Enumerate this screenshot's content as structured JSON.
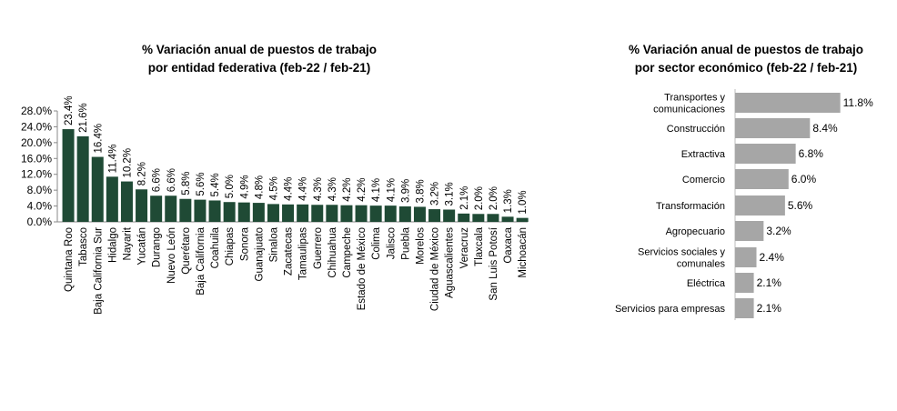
{
  "chart_data": [
    {
      "type": "bar",
      "title_line1": "% Variación anual de puestos de trabajo",
      "title_line2": "por entidad federativa (feb-22 / feb-21)",
      "categories": [
        "Quintana Roo",
        "Tabasco",
        "Baja California Sur",
        "Hidalgo",
        "Nayarit",
        "Yucatán",
        "Durango",
        "Nuevo León",
        "Querétaro",
        "Baja California",
        "Coahuila",
        "Chiapas",
        "Sonora",
        "Guanajuato",
        "Sinaloa",
        "Zacatecas",
        "Tamaulipas",
        "Guerrero",
        "Chihuahua",
        "Campeche",
        "Estado de México",
        "Colima",
        "Jalisco",
        "Puebla",
        "Morelos",
        "Ciudad de México",
        "Aguascalientes",
        "Veracruz",
        "Tlaxcala",
        "San Luis Potosí",
        "Oaxaca",
        "Michoacán"
      ],
      "values": [
        23.4,
        21.6,
        16.4,
        11.4,
        10.2,
        8.2,
        6.6,
        6.6,
        5.8,
        5.6,
        5.4,
        5.0,
        4.9,
        4.8,
        4.5,
        4.4,
        4.4,
        4.3,
        4.3,
        4.2,
        4.2,
        4.1,
        4.1,
        3.9,
        3.8,
        3.2,
        3.1,
        2.1,
        2.0,
        2.0,
        1.3,
        1.0
      ],
      "ylim": [
        0,
        28
      ],
      "yticks": [
        "0.0%",
        "4.0%",
        "8.0%",
        "12.0%",
        "16.0%",
        "20.0%",
        "24.0%",
        "28.0%"
      ],
      "color": "#1f4a35"
    },
    {
      "type": "bar",
      "orientation": "horizontal",
      "title_line1": "% Variación anual de puestos de trabajo",
      "title_line2": "por sector económico (feb-22 / feb-21)",
      "categories": [
        [
          "Transportes y",
          "comunicaciones"
        ],
        [
          "Construcción"
        ],
        [
          "Extractiva"
        ],
        [
          "Comercio"
        ],
        [
          "Transformación"
        ],
        [
          "Agropecuario"
        ],
        [
          "Servicios sociales y",
          "comunales"
        ],
        [
          "Eléctrica"
        ],
        [
          "Servicios para empresas"
        ]
      ],
      "values": [
        11.8,
        8.4,
        6.8,
        6.0,
        5.6,
        3.2,
        2.4,
        2.1,
        2.1
      ],
      "color": "#a6a6a6"
    }
  ]
}
